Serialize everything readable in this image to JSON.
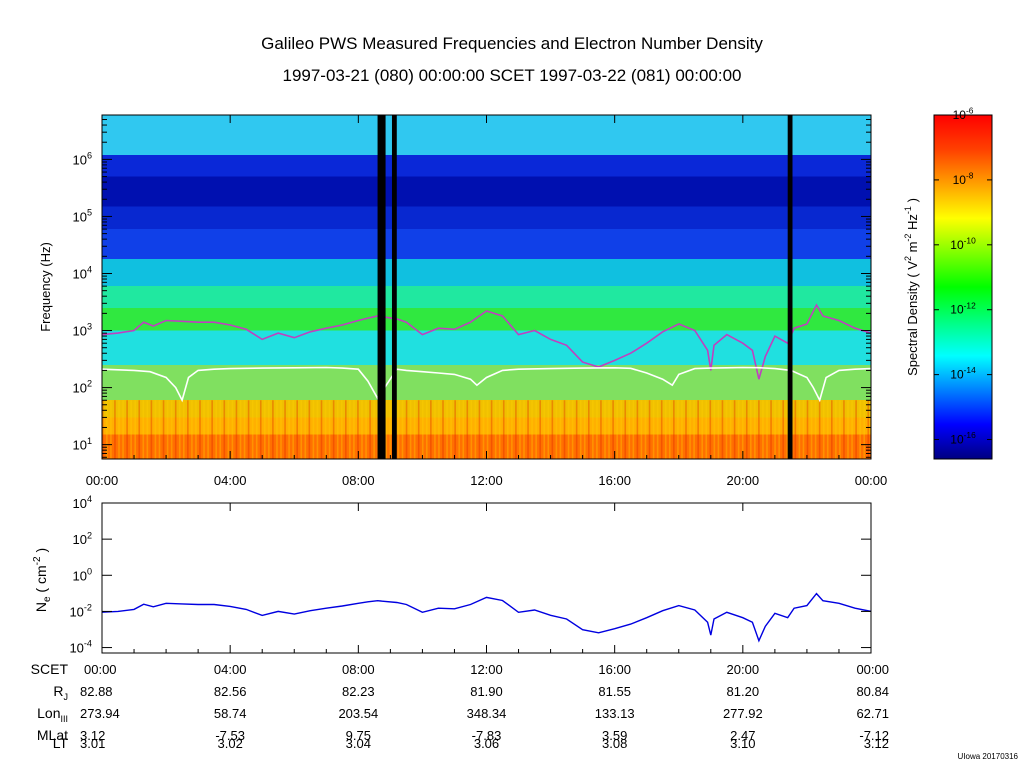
{
  "title": "Galileo PWS Measured Frequencies and Electron Number Density",
  "subtitle": "1997-03-21 (080) 00:00:00 SCET 1997-03-22 (081) 00:00:00",
  "credit": "UIowa 20170316",
  "chart_data": [
    {
      "type": "heatmap",
      "name": "spectrogram",
      "ylabel": "Frequency (Hz)",
      "y_scale": "log",
      "ylim": [
        5.6,
        6000000
      ],
      "y_ticks": [
        {
          "value": 10,
          "base": "10",
          "exp": "1"
        },
        {
          "value": 100,
          "base": "10",
          "exp": "2"
        },
        {
          "value": 1000,
          "base": "10",
          "exp": "3"
        },
        {
          "value": 10000,
          "base": "10",
          "exp": "4"
        },
        {
          "value": 100000,
          "base": "10",
          "exp": "5"
        },
        {
          "value": 1000000,
          "base": "10",
          "exp": "6"
        }
      ],
      "x_range_hours": [
        0,
        24
      ],
      "x_ticks": [
        "00:00",
        "04:00",
        "08:00",
        "12:00",
        "16:00",
        "20:00",
        "00:00"
      ],
      "data_gaps_hours": [
        [
          8.6,
          8.85
        ],
        [
          9.05,
          9.2
        ],
        [
          21.4,
          21.55
        ]
      ],
      "series": [
        {
          "name": "upper hybrid frequency",
          "color": "#c040c0",
          "x_hours": [
            0,
            0.5,
            1,
            1.3,
            1.6,
            2,
            2.5,
            3,
            3.5,
            4,
            4.5,
            5,
            5.5,
            6,
            6.5,
            7,
            7.5,
            8,
            8.3,
            8.6,
            9.2,
            9.5,
            10,
            10.5,
            11,
            11.5,
            12,
            12.5,
            13,
            13.5,
            14,
            14.5,
            15,
            15.5,
            16,
            16.5,
            17,
            17.5,
            18,
            18.5,
            18.9,
            19,
            19.1,
            19.5,
            20,
            20.3,
            20.5,
            20.7,
            21,
            21.4,
            21.6,
            22,
            22.3,
            22.5,
            23,
            23.5,
            24
          ],
          "values": [
            850,
            900,
            1000,
            1400,
            1200,
            1500,
            1450,
            1400,
            1400,
            1250,
            1050,
            700,
            900,
            750,
            950,
            1100,
            1250,
            1500,
            1650,
            1800,
            1600,
            1400,
            850,
            1100,
            1050,
            1400,
            2200,
            1800,
            850,
            1000,
            700,
            550,
            280,
            230,
            300,
            400,
            600,
            950,
            1300,
            1000,
            450,
            200,
            550,
            850,
            600,
            450,
            140,
            350,
            800,
            600,
            1100,
            1300,
            2800,
            1800,
            1500,
            1100,
            900
          ]
        },
        {
          "name": "electron cyclotron frequency",
          "color": "#ffffff",
          "x_hours": [
            0,
            0.5,
            1,
            1.5,
            2,
            2.3,
            2.5,
            2.7,
            3,
            3.5,
            4,
            5,
            6,
            7,
            7.5,
            8,
            8.3,
            8.6,
            9.2,
            9.5,
            10,
            10.5,
            11,
            11.5,
            11.7,
            12,
            12.5,
            13,
            14,
            15,
            16,
            16.5,
            17,
            17.5,
            17.8,
            18,
            18.5,
            19,
            19.5,
            20,
            20.5,
            21,
            21.5,
            22,
            22.2,
            22.4,
            22.6,
            23,
            23.5,
            24
          ],
          "values": [
            210,
            205,
            200,
            190,
            150,
            100,
            60,
            150,
            200,
            210,
            215,
            220,
            222,
            225,
            220,
            210,
            130,
            65,
            210,
            200,
            190,
            180,
            170,
            140,
            110,
            150,
            200,
            210,
            215,
            220,
            222,
            218,
            180,
            140,
            110,
            170,
            215,
            220,
            222,
            225,
            223,
            215,
            200,
            150,
            100,
            60,
            150,
            200,
            210,
            215
          ]
        }
      ],
      "colorbar": {
        "label_main": "Spectral Density ( V",
        "label_sup1": "2",
        "label_m": " m",
        "label_sup2": "-2",
        "label_hz": " Hz",
        "label_sup3": "-1",
        "label_end": " )",
        "colors": [
          "#000080",
          "#0000ff",
          "#0080ff",
          "#00ffff",
          "#00ff80",
          "#00ff00",
          "#80ff00",
          "#ffff00",
          "#ffa000",
          "#ff4000",
          "#ff0000"
        ],
        "ticks": [
          {
            "value": 1e-16,
            "base": "10",
            "exp": "-16"
          },
          {
            "value": 1e-14,
            "base": "10",
            "exp": "-14"
          },
          {
            "value": 1e-12,
            "base": "10",
            "exp": "-12"
          },
          {
            "value": 1e-10,
            "base": "10",
            "exp": "-10"
          },
          {
            "value": 1e-08,
            "base": "10",
            "exp": "-8"
          },
          {
            "value": 1e-06,
            "base": "10",
            "exp": "-6"
          }
        ]
      }
    },
    {
      "type": "line",
      "name": "electron number density",
      "ylabel_main": "N",
      "ylabel_sub": "e",
      "ylabel_unit": " ( cm",
      "ylabel_sup": "-2",
      "ylabel_end": " )",
      "y_scale": "log",
      "ylim": [
        5e-05,
        10000
      ],
      "y_ticks": [
        {
          "value": 0.0001,
          "base": "10",
          "exp": "-4"
        },
        {
          "value": 0.01,
          "base": "10",
          "exp": "-2"
        },
        {
          "value": 1,
          "base": "10",
          "exp": "0"
        },
        {
          "value": 100,
          "base": "10",
          "exp": "2"
        },
        {
          "value": 10000,
          "base": "10",
          "exp": "4"
        }
      ],
      "x_range_hours": [
        0,
        24
      ],
      "series": [
        {
          "name": "Ne",
          "color": "#0000e0",
          "x_hours": [
            0,
            0.5,
            1,
            1.3,
            1.6,
            2,
            2.5,
            3,
            3.5,
            4,
            4.5,
            5,
            5.5,
            6,
            6.5,
            7,
            7.5,
            8,
            8.3,
            8.6,
            9.2,
            9.5,
            10,
            10.5,
            11,
            11.5,
            12,
            12.5,
            13,
            13.5,
            14,
            14.5,
            15,
            15.5,
            16,
            16.5,
            17,
            17.5,
            18,
            18.5,
            18.9,
            19,
            19.1,
            19.5,
            20,
            20.3,
            20.5,
            20.7,
            21,
            21.4,
            21.6,
            22,
            22.3,
            22.5,
            23,
            23.5,
            24
          ],
          "values": [
            0.009,
            0.01,
            0.013,
            0.025,
            0.018,
            0.028,
            0.026,
            0.024,
            0.024,
            0.019,
            0.013,
            0.006,
            0.01,
            0.0071,
            0.011,
            0.015,
            0.02,
            0.028,
            0.034,
            0.039,
            0.031,
            0.024,
            0.0089,
            0.015,
            0.014,
            0.024,
            0.06,
            0.04,
            0.0089,
            0.012,
            0.0061,
            0.0038,
            0.00097,
            0.00066,
            0.0011,
            0.002,
            0.0045,
            0.011,
            0.021,
            0.012,
            0.0025,
            0.00049,
            0.0038,
            0.0089,
            0.0045,
            0.0025,
            0.00024,
            0.0015,
            0.0079,
            0.0045,
            0.015,
            0.021,
            0.097,
            0.039,
            0.028,
            0.015,
            0.01
          ]
        }
      ]
    }
  ],
  "ephemeris": {
    "labels": [
      {
        "main": "SCET",
        "sub": ""
      },
      {
        "main": "R",
        "sub": "J"
      },
      {
        "main": "Lon",
        "sub": "III"
      },
      {
        "main": "MLat",
        "sub": ""
      },
      {
        "main": "LT",
        "sub": ""
      }
    ],
    "rows": [
      [
        "00:00",
        "04:00",
        "08:00",
        "12:00",
        "16:00",
        "20:00",
        "00:00"
      ],
      [
        "82.88",
        "82.56",
        "82.23",
        "81.90",
        "81.55",
        "81.20",
        "80.84"
      ],
      [
        "273.94",
        "58.74",
        "203.54",
        "348.34",
        "133.13",
        "277.92",
        "62.71"
      ],
      [
        "3.12",
        "-7.53",
        "9.75",
        "-7.83",
        "3.59",
        "2.47",
        "-7.12"
      ],
      [
        "3.01",
        "3.02",
        "3.04",
        "3.06",
        "3.08",
        "3.10",
        "3.12"
      ]
    ]
  }
}
